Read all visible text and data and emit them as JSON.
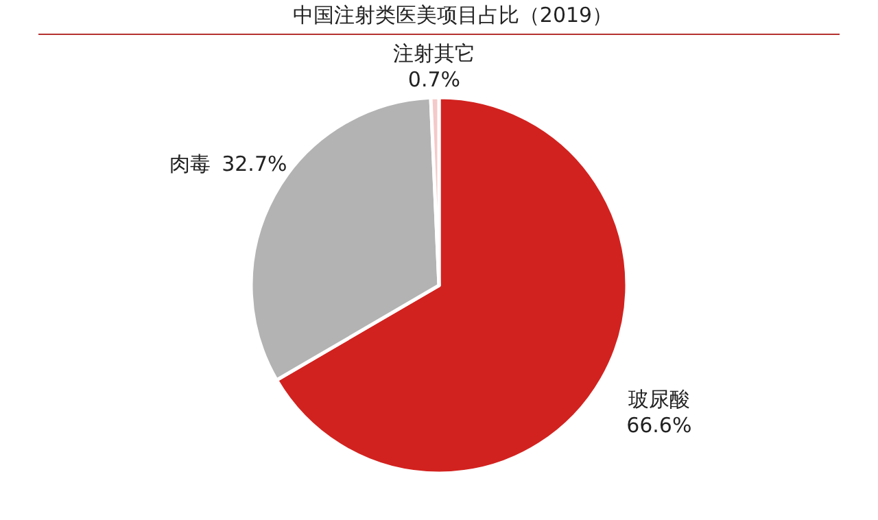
{
  "chart_data": {
    "type": "pie",
    "title": "中国注射类医美项目占比（2019）",
    "categories": [
      "玻尿酸",
      "肉毒",
      "注射其它"
    ],
    "values": [
      66.6,
      32.7,
      0.7
    ],
    "colors": [
      "#d2221f",
      "#b3b3b3",
      "#f4c9c9"
    ],
    "value_labels": [
      "66.6%",
      "32.7%",
      "0.7%"
    ]
  }
}
